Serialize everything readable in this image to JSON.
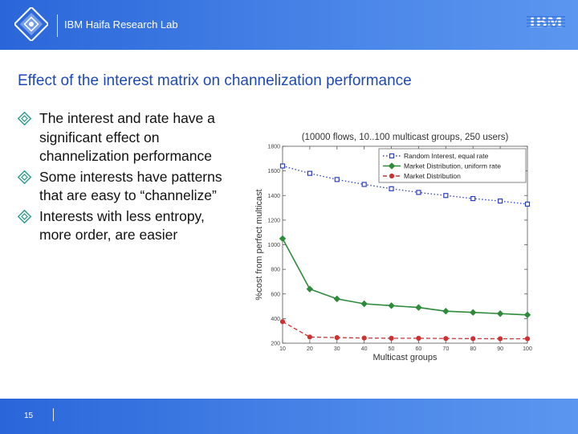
{
  "header": {
    "lab_name": "IBM Haifa Research Lab",
    "brand": "IBM"
  },
  "title": "Effect of the interest matrix on channelization performance",
  "bullets": [
    "The interest and rate have a significant effect on channelization performance",
    "Some interests have patterns that are easy to “channelize”",
    "Interests with less entropy, more order, are easier"
  ],
  "footer": {
    "page_number": "15"
  },
  "colors": {
    "accent": "#1d49b8",
    "header_bg": "#3a78e0"
  },
  "chart_data": {
    "type": "line",
    "title": "(10000 flows, 10..100 multicast groups, 250 users)",
    "xlabel": "Multicast groups",
    "ylabel": "%cost from perfect multicast",
    "x": [
      10,
      20,
      30,
      40,
      50,
      60,
      70,
      80,
      90,
      100
    ],
    "xlim": [
      10,
      100
    ],
    "ylim": [
      200,
      1800
    ],
    "yticks": [
      200,
      400,
      600,
      800,
      1000,
      1200,
      1400,
      1600,
      1800
    ],
    "legend_position": "top-right",
    "series": [
      {
        "name": "Random Interest, equal rate",
        "color": "#2a3fc0",
        "marker": "square",
        "dash": "dot",
        "values": [
          1640,
          1580,
          1530,
          1490,
          1455,
          1425,
          1400,
          1375,
          1355,
          1330
        ]
      },
      {
        "name": "Market Distribution, uniform rate",
        "color": "#2f8a3a",
        "marker": "diamond",
        "dash": "solid",
        "values": [
          1050,
          640,
          560,
          520,
          505,
          490,
          460,
          450,
          440,
          430
        ]
      },
      {
        "name": "Market Distribution",
        "color": "#d03030",
        "marker": "circle",
        "dash": "dash",
        "values": [
          375,
          250,
          245,
          242,
          240,
          240,
          238,
          237,
          236,
          236
        ]
      }
    ]
  }
}
